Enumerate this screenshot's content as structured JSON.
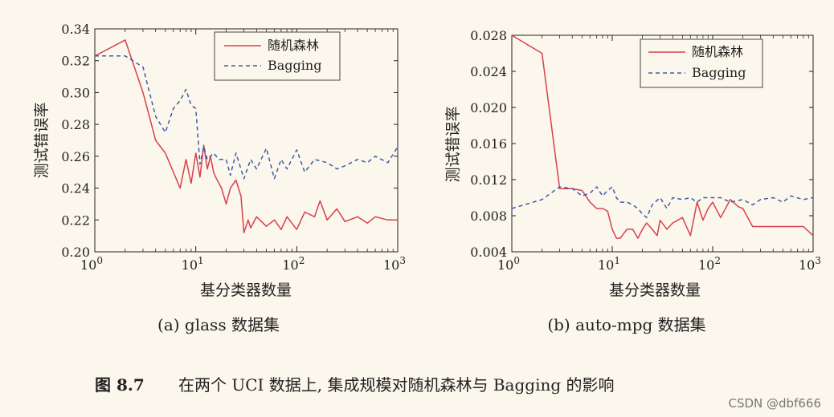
{
  "colors": {
    "rf": "#d9404a",
    "bagging": "#3f5aa8",
    "axis": "#222222",
    "background": "#fbf7ec"
  },
  "chart_data": [
    {
      "type": "line",
      "xscale": "log",
      "xlim": [
        1,
        1000
      ],
      "ylim": [
        0.2,
        0.34
      ],
      "xticks": [
        "10^0",
        "10^1",
        "10^2",
        "10^3"
      ],
      "yticks": [
        "0.20",
        "0.22",
        "0.24",
        "0.26",
        "0.28",
        "0.30",
        "0.32",
        "0.34"
      ],
      "xlabel": "基分类器数量",
      "ylabel": "测试错误率",
      "subtitle": "(a) glass 数据集",
      "legend": "top-right",
      "series": [
        {
          "name": "随机森林",
          "x": [
            1,
            2,
            3,
            4,
            5,
            7,
            8,
            9,
            10,
            11,
            12,
            13,
            14,
            15,
            16,
            18,
            20,
            22,
            25,
            28,
            30,
            33,
            35,
            40,
            50,
            60,
            70,
            80,
            100,
            120,
            150,
            170,
            200,
            250,
            300,
            400,
            500,
            600,
            800,
            1000
          ],
          "y": [
            0.323,
            0.333,
            0.3,
            0.27,
            0.262,
            0.24,
            0.258,
            0.243,
            0.262,
            0.247,
            0.267,
            0.252,
            0.26,
            0.25,
            0.246,
            0.24,
            0.23,
            0.24,
            0.245,
            0.235,
            0.212,
            0.22,
            0.215,
            0.222,
            0.216,
            0.22,
            0.214,
            0.222,
            0.214,
            0.225,
            0.222,
            0.232,
            0.22,
            0.227,
            0.219,
            0.222,
            0.218,
            0.222,
            0.22,
            0.22
          ]
        },
        {
          "name": "Bagging",
          "x": [
            1,
            2,
            3,
            4,
            5,
            6,
            7,
            8,
            9,
            10,
            11,
            12,
            13,
            15,
            17,
            20,
            22,
            25,
            30,
            35,
            40,
            50,
            60,
            70,
            80,
            100,
            120,
            150,
            200,
            250,
            300,
            400,
            500,
            600,
            800,
            1000
          ],
          "y": [
            0.323,
            0.323,
            0.316,
            0.285,
            0.275,
            0.29,
            0.295,
            0.302,
            0.292,
            0.29,
            0.255,
            0.266,
            0.258,
            0.262,
            0.258,
            0.258,
            0.248,
            0.262,
            0.246,
            0.258,
            0.252,
            0.265,
            0.246,
            0.258,
            0.252,
            0.264,
            0.25,
            0.258,
            0.256,
            0.252,
            0.254,
            0.258,
            0.256,
            0.26,
            0.256,
            0.266
          ]
        }
      ]
    },
    {
      "type": "line",
      "xscale": "log",
      "xlim": [
        1,
        1000
      ],
      "ylim": [
        0.004,
        0.028
      ],
      "xticks": [
        "10^0",
        "10^1",
        "10^2",
        "10^3"
      ],
      "yticks": [
        "0.004",
        "0.008",
        "0.012",
        "0.016",
        "0.020",
        "0.024",
        "0.028"
      ],
      "xlabel": "基分类器数量",
      "ylabel": "测试错误率",
      "subtitle": "(b) auto-mpg 数据集",
      "legend": "top-right",
      "series": [
        {
          "name": "随机森林",
          "x": [
            1,
            2,
            3,
            4,
            5,
            6,
            7,
            8,
            9,
            10,
            11,
            12,
            14,
            16,
            18,
            20,
            22,
            25,
            28,
            30,
            35,
            40,
            50,
            60,
            70,
            80,
            90,
            100,
            120,
            150,
            180,
            200,
            250,
            300,
            400,
            500,
            600,
            800,
            1000
          ],
          "y": [
            0.028,
            0.026,
            0.011,
            0.011,
            0.0108,
            0.0095,
            0.0088,
            0.0088,
            0.0085,
            0.0065,
            0.0055,
            0.0055,
            0.0065,
            0.0065,
            0.0055,
            0.0065,
            0.0072,
            0.0065,
            0.0058,
            0.0075,
            0.0065,
            0.0072,
            0.0078,
            0.0058,
            0.0095,
            0.0075,
            0.0088,
            0.0095,
            0.0078,
            0.0098,
            0.009,
            0.0088,
            0.0068,
            0.0068,
            0.0068,
            0.0068,
            0.0068,
            0.0068,
            0.0058
          ]
        },
        {
          "name": "Bagging",
          "x": [
            1,
            2,
            3,
            4,
            5,
            6,
            7,
            8,
            9,
            10,
            11,
            12,
            14,
            16,
            18,
            20,
            22,
            25,
            30,
            35,
            40,
            50,
            60,
            70,
            80,
            100,
            120,
            150,
            200,
            250,
            300,
            400,
            500,
            600,
            800,
            1000
          ],
          "y": [
            0.0088,
            0.0098,
            0.0112,
            0.011,
            0.0102,
            0.0105,
            0.0112,
            0.0102,
            0.0108,
            0.0112,
            0.01,
            0.0095,
            0.0095,
            0.0092,
            0.0088,
            0.0082,
            0.0078,
            0.0092,
            0.01,
            0.0088,
            0.01,
            0.0098,
            0.01,
            0.0095,
            0.01,
            0.01,
            0.01,
            0.0095,
            0.0098,
            0.0092,
            0.0098,
            0.01,
            0.0095,
            0.0102,
            0.0098,
            0.01
          ]
        }
      ]
    }
  ],
  "caption": {
    "label": "图 8.7",
    "text": "在两个 UCI 数据上, 集成规模对随机森林与 Bagging 的影响"
  },
  "watermark": "CSDN @dbf666"
}
